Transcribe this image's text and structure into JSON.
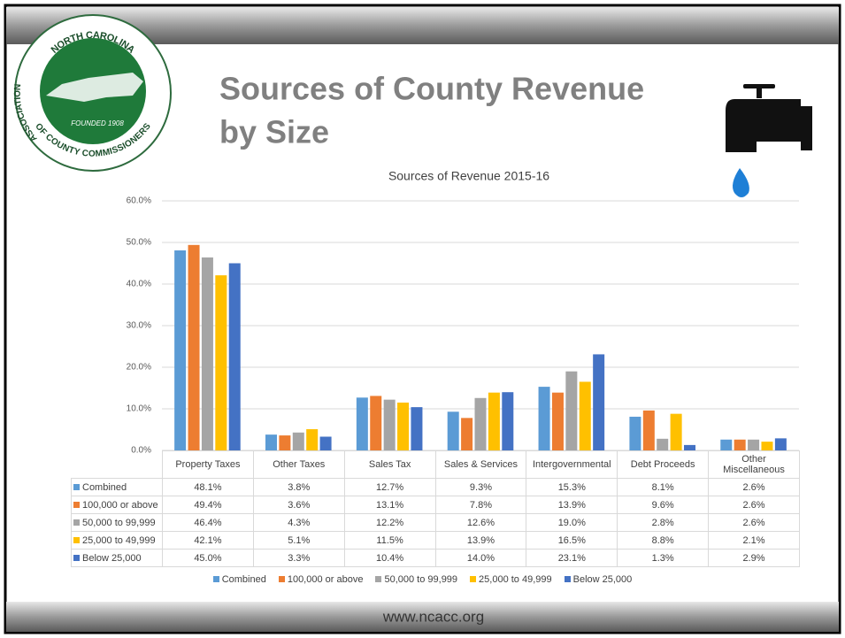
{
  "slide": {
    "title_line1": "Sources of County Revenue",
    "title_line2": "by Size",
    "footer": "www.ncacc.org",
    "logo": {
      "top": "NORTH CAROLINA",
      "left": "ASSOCIATION",
      "bottom": "OF COUNTY COMMISSIONERS",
      "founded": "FOUNDED 1908"
    }
  },
  "chart_data": {
    "type": "bar",
    "title": "Sources of Revenue 2015-16",
    "categories": [
      "Property Taxes",
      "Other Taxes",
      "Sales Tax",
      "Sales & Services",
      "Intergovernmental",
      "Debt Proceeds",
      "Other Miscellaneous"
    ],
    "series": [
      {
        "name": "Combined",
        "color": "#5b9bd5",
        "values": [
          48.1,
          3.8,
          12.7,
          9.3,
          15.3,
          8.1,
          2.6
        ],
        "value_labels": [
          "48.1%",
          "3.8%",
          "12.7%",
          "9.3%",
          "15.3%",
          "8.1%",
          "2.6%"
        ]
      },
      {
        "name": "100,000 or above",
        "color": "#ed7d31",
        "values": [
          49.4,
          3.6,
          13.1,
          7.8,
          13.9,
          9.6,
          2.6
        ],
        "value_labels": [
          "49.4%",
          "3.6%",
          "13.1%",
          "7.8%",
          "13.9%",
          "9.6%",
          "2.6%"
        ]
      },
      {
        "name": "50,000 to 99,999",
        "color": "#a5a5a5",
        "values": [
          46.4,
          4.3,
          12.2,
          12.6,
          19.0,
          2.8,
          2.6
        ],
        "value_labels": [
          "46.4%",
          "4.3%",
          "12.2%",
          "12.6%",
          "19.0%",
          "2.8%",
          "2.6%"
        ]
      },
      {
        "name": "25,000 to 49,999",
        "color": "#ffc000",
        "values": [
          42.1,
          5.1,
          11.5,
          13.9,
          16.5,
          8.8,
          2.1
        ],
        "value_labels": [
          "42.1%",
          "5.1%",
          "11.5%",
          "13.9%",
          "16.5%",
          "8.8%",
          "2.1%"
        ]
      },
      {
        "name": "Below 25,000",
        "color": "#4472c4",
        "values": [
          45.0,
          3.3,
          10.4,
          14.0,
          23.1,
          1.3,
          2.9
        ],
        "value_labels": [
          "45.0%",
          "3.3%",
          "10.4%",
          "14.0%",
          "23.1%",
          "1.3%",
          "2.9%"
        ]
      }
    ],
    "ylim": [
      0,
      60
    ],
    "yticks": [
      {
        "value": 0,
        "label": "0.0%"
      },
      {
        "value": 10,
        "label": "10.0%"
      },
      {
        "value": 20,
        "label": "20.0%"
      },
      {
        "value": 30,
        "label": "30.0%"
      },
      {
        "value": 40,
        "label": "40.0%"
      },
      {
        "value": 50,
        "label": "50.0%"
      },
      {
        "value": 60,
        "label": "60.0%"
      }
    ],
    "grid": true,
    "legend": "bottom"
  }
}
